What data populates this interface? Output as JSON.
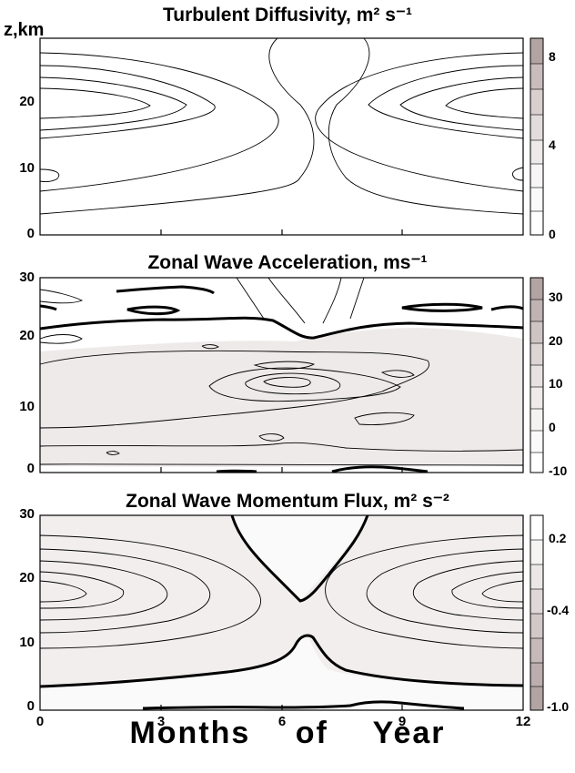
{
  "chart_data": [
    {
      "type": "contour",
      "title": "Turbulent Diffusivity, m² s⁻¹",
      "ylabel": "z,km",
      "xlabel": "Months of Year",
      "x_range": [
        0,
        12
      ],
      "y_range": [
        0,
        30
      ],
      "y_ticks": [
        "20",
        "10",
        "0"
      ],
      "colorbar_ticks": [
        "8",
        "4",
        "0"
      ],
      "colorbar_range": [
        0,
        9
      ],
      "colors": {
        "low": "#ffffff",
        "high": "#b3a4a4"
      },
      "features": [
        {
          "x": 0,
          "y": 19,
          "max_value": 6
        },
        {
          "x": 12,
          "y": 19,
          "max_value": 6
        }
      ]
    },
    {
      "type": "contour",
      "title": "Zonal  Wave Acceleration, ms⁻¹",
      "y_range": [
        0,
        30
      ],
      "y_ticks": [
        "30",
        "20",
        "10",
        "0"
      ],
      "colorbar_ticks": [
        "30",
        "20",
        "10",
        "0",
        "-10"
      ],
      "colorbar_range": [
        -10,
        35
      ],
      "zero_contour": "thick",
      "colors": {
        "low": "#ffffff",
        "high": "#b3a4a4"
      },
      "features": [
        {
          "x": 6.2,
          "y": 13.5,
          "max_value": 30
        }
      ]
    },
    {
      "type": "contour",
      "title": "Zonal Wave Momentum Flux, m² s⁻²",
      "y_range": [
        0,
        30
      ],
      "y_ticks": [
        "30",
        "20",
        "10",
        "0"
      ],
      "x_ticks": [
        "0",
        "3",
        "6",
        "9",
        "12"
      ],
      "colorbar_ticks": [
        "0.2",
        "-0.4",
        "-1.0"
      ],
      "colorbar_range": [
        -1.0,
        0.3
      ],
      "zero_contour": "thick",
      "colors": {
        "low": "#b3a4a4",
        "high": "#ffffff"
      },
      "features": [
        {
          "x": 0,
          "y": 18,
          "min_value": -1.0
        },
        {
          "x": 12,
          "y": 18,
          "min_value": -1.0
        }
      ]
    }
  ]
}
